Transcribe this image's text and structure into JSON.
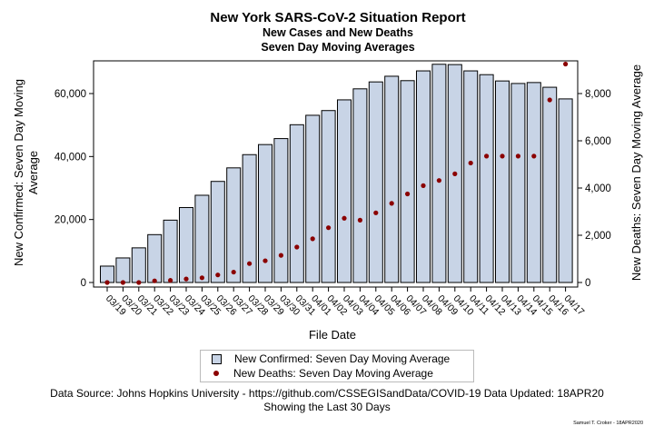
{
  "chart_data": {
    "type": "bar",
    "title": "New York SARS-CoV-2 Situation Report",
    "subtitle1": "New Cases and New Deaths",
    "subtitle2": "Seven Day Moving Averages",
    "xlabel": "File Date",
    "ylabel_left": "New Confirmed: Seven Day Moving Average",
    "ylabel_right": "New Deaths: Seven Day Moving Average",
    "ylim_left": [
      0,
      70000
    ],
    "ylim_right": [
      0,
      9500
    ],
    "yticks_left": [
      "0",
      "20,000",
      "40,000",
      "60,000"
    ],
    "yticks_right": [
      "0",
      "2,000",
      "4,000",
      "6,000",
      "8,000"
    ],
    "categories": [
      "03/19",
      "03/20",
      "03/21",
      "03/22",
      "03/23",
      "03/24",
      "03/25",
      "03/26",
      "03/27",
      "03/28",
      "03/29",
      "03/30",
      "03/31",
      "04/01",
      "04/02",
      "04/03",
      "04/04",
      "04/05",
      "04/06",
      "04/07",
      "04/08",
      "04/09",
      "04/10",
      "04/11",
      "04/12",
      "04/13",
      "04/14",
      "04/15",
      "04/16",
      "04/17"
    ],
    "series": [
      {
        "name": "New Confirmed: Seven Day Moving Average",
        "type": "bar",
        "axis": "left",
        "color": "#c8d4e6",
        "values": [
          5200,
          7800,
          11000,
          15200,
          19800,
          23800,
          27700,
          32100,
          36400,
          40600,
          43800,
          45700,
          50100,
          53100,
          54600,
          58000,
          61500,
          63700,
          65500,
          64100,
          67200,
          69300,
          69200,
          67200,
          66000,
          64000,
          63200,
          63500,
          62000,
          58300
        ]
      },
      {
        "name": "New Deaths: Seven Day Moving Average",
        "type": "scatter",
        "axis": "right",
        "color": "#8b0000",
        "values": [
          0,
          0,
          0,
          70,
          90,
          150,
          200,
          320,
          440,
          800,
          920,
          1150,
          1500,
          1850,
          2320,
          2720,
          2640,
          2950,
          3350,
          3750,
          4100,
          4320,
          4600,
          5060,
          5350,
          5350,
          5350,
          5350,
          7730,
          9250
        ]
      }
    ]
  },
  "footer": {
    "source": "Data Source: Johns Hopkins University - https://github.com/CSSEGISandData/COVID-19 Data Updated: 18APR20",
    "showing": "Showing the Last 30 Days",
    "credit": "Samuel T. Croker - 18APR2020"
  }
}
